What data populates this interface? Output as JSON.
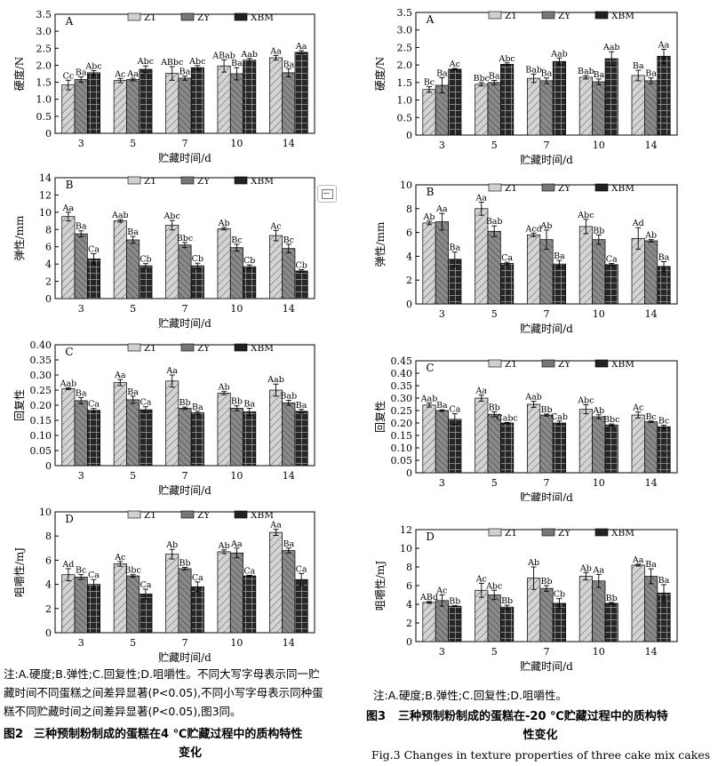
{
  "legend": [
    "Z1",
    "ZY",
    "XBM"
  ],
  "x_title": "贮藏时间/d",
  "chart_data": [
    {
      "id": "L-A",
      "type": "bar",
      "panel": "A",
      "ylabel": "硬度/N",
      "ylim": [
        0,
        3.5
      ],
      "yticks": [
        "0",
        "0.5",
        "1.0",
        "1.5",
        "2.0",
        "2.5",
        "3.0",
        "3.5"
      ],
      "categories": [
        "3",
        "5",
        "7",
        "10",
        "14"
      ],
      "series": [
        {
          "name": "Z1",
          "values": [
            1.42,
            1.55,
            1.76,
            1.98,
            2.22
          ],
          "err": [
            0.14,
            0.06,
            0.2,
            0.18,
            0.07
          ],
          "labels": [
            "Cc",
            "Ac",
            "ABbc",
            "ABab",
            "Aa"
          ]
        },
        {
          "name": "ZY",
          "values": [
            1.58,
            1.58,
            1.62,
            1.75,
            1.78
          ],
          "err": [
            0.08,
            0.04,
            0.06,
            0.18,
            0.12
          ],
          "labels": [
            "Ba",
            "Aa",
            "Ba",
            "Ba",
            "Ba"
          ]
        },
        {
          "name": "XBM",
          "values": [
            1.78,
            1.88,
            1.93,
            2.15,
            2.38
          ],
          "err": [
            0.06,
            0.1,
            0.06,
            0.05,
            0.05
          ],
          "labels": [
            "Abc",
            "Abc",
            "Abc",
            "Aab",
            "Aa"
          ]
        }
      ]
    },
    {
      "id": "L-B",
      "type": "bar",
      "panel": "B",
      "ylabel": "弹性/mm",
      "ylim": [
        0,
        14
      ],
      "yticks": [
        "0",
        "2",
        "4",
        "6",
        "8",
        "10",
        "12",
        "14"
      ],
      "categories": [
        "3",
        "5",
        "7",
        "10",
        "14"
      ],
      "series": [
        {
          "name": "Z1",
          "values": [
            9.5,
            9.0,
            8.5,
            8.1,
            7.3
          ],
          "err": [
            0.5,
            0.15,
            0.55,
            0.15,
            0.6
          ],
          "labels": [
            "Aa",
            "Aab",
            "Abc",
            "Ab",
            "Ac"
          ]
        },
        {
          "name": "ZY",
          "values": [
            7.5,
            6.8,
            6.2,
            5.9,
            5.8
          ],
          "err": [
            0.35,
            0.4,
            0.3,
            0.4,
            0.5
          ],
          "labels": [
            "Ba",
            "Ba",
            "Bbc",
            "Bc",
            "Bc"
          ]
        },
        {
          "name": "XBM",
          "values": [
            4.6,
            3.8,
            3.8,
            3.7,
            3.2
          ],
          "err": [
            0.6,
            0.25,
            0.3,
            0.2,
            0.15
          ],
          "labels": [
            "Ca",
            "Cb",
            "Cb",
            "Cb",
            "Cb"
          ]
        }
      ]
    },
    {
      "id": "L-C",
      "type": "bar",
      "panel": "C",
      "ylabel": "回复性",
      "ylim": [
        0,
        0.4
      ],
      "yticks": [
        "0",
        "0.05",
        "0.10",
        "0.15",
        "0.20",
        "0.25",
        "0.30",
        "0.35",
        "0.40"
      ],
      "categories": [
        "3",
        "5",
        "7",
        "10",
        "14"
      ],
      "series": [
        {
          "name": "Z1",
          "values": [
            0.255,
            0.275,
            0.28,
            0.24,
            0.25
          ],
          "err": [
            0.003,
            0.01,
            0.02,
            0.005,
            0.02
          ],
          "labels": [
            "Aab",
            "Aa",
            "Aa",
            "Ab",
            "Aab"
          ]
        },
        {
          "name": "ZY",
          "values": [
            0.215,
            0.218,
            0.19,
            0.19,
            0.208
          ],
          "err": [
            0.01,
            0.012,
            0.004,
            0.008,
            0.008
          ],
          "labels": [
            "Ba",
            "Ba",
            "Bb",
            "Bb",
            "Bab"
          ]
        },
        {
          "name": "XBM",
          "values": [
            0.183,
            0.185,
            0.175,
            0.178,
            0.18
          ],
          "err": [
            0.006,
            0.01,
            0.005,
            0.012,
            0.006
          ],
          "labels": [
            "Ca",
            "Ca",
            "Ba",
            "Ba",
            "Ba"
          ]
        }
      ]
    },
    {
      "id": "L-D",
      "type": "bar",
      "panel": "D",
      "ylabel": "咀嚼性/mJ",
      "ylim": [
        0,
        10
      ],
      "yticks": [
        "0",
        "2",
        "4",
        "6",
        "8",
        "10"
      ],
      "categories": [
        "3",
        "5",
        "7",
        "10",
        "14"
      ],
      "series": [
        {
          "name": "Z1",
          "values": [
            4.8,
            5.7,
            6.5,
            6.7,
            8.3
          ],
          "err": [
            0.5,
            0.2,
            0.4,
            0.15,
            0.25
          ],
          "labels": [
            "Ad",
            "Ac",
            "Ab",
            "Ab",
            "Aa"
          ]
        },
        {
          "name": "ZY",
          "values": [
            4.6,
            4.7,
            5.3,
            6.6,
            6.8
          ],
          "err": [
            0.2,
            0.1,
            0.1,
            0.4,
            0.2
          ],
          "labels": [
            "Bc",
            "Bbc",
            "Bb",
            "Aa",
            "Ba"
          ]
        },
        {
          "name": "XBM",
          "values": [
            4.0,
            3.2,
            3.8,
            4.7,
            4.4
          ],
          "err": [
            0.4,
            0.4,
            0.4,
            0.05,
            0.5
          ],
          "labels": [
            "Ca",
            "Ca",
            "Ca",
            "Ca",
            "Ca"
          ]
        }
      ]
    },
    {
      "id": "R-A",
      "type": "bar",
      "panel": "A",
      "ylabel": "硬度/N",
      "ylim": [
        0,
        3.5
      ],
      "yticks": [
        "0",
        "0.5",
        "1.0",
        "1.5",
        "2.0",
        "2.5",
        "3.0",
        "3.5"
      ],
      "categories": [
        "3",
        "5",
        "7",
        "10",
        "14"
      ],
      "series": [
        {
          "name": "Z1",
          "values": [
            1.3,
            1.45,
            1.62,
            1.65,
            1.7
          ],
          "err": [
            0.08,
            0.05,
            0.12,
            0.05,
            0.15
          ],
          "labels": [
            "Bc",
            "Bbc",
            "Bab",
            "Bab",
            "Ba"
          ]
        },
        {
          "name": "ZY",
          "values": [
            1.42,
            1.5,
            1.55,
            1.52,
            1.55
          ],
          "err": [
            0.22,
            0.06,
            0.08,
            0.08,
            0.08
          ],
          "labels": [
            "Ba",
            "Ba",
            "Ba",
            "Ba",
            "Ba"
          ]
        },
        {
          "name": "XBM",
          "values": [
            1.88,
            2.02,
            2.1,
            2.18,
            2.25
          ],
          "err": [
            0.02,
            0.04,
            0.1,
            0.2,
            0.2
          ],
          "labels": [
            "Ac",
            "Abc",
            "Aab",
            "Aab",
            "Aa"
          ]
        }
      ]
    },
    {
      "id": "R-B",
      "type": "bar",
      "panel": "B",
      "ylabel": "弹性/mm",
      "ylim": [
        0,
        10
      ],
      "yticks": [
        "0",
        "2",
        "4",
        "6",
        "8",
        "10"
      ],
      "categories": [
        "3",
        "5",
        "7",
        "10",
        "14"
      ],
      "series": [
        {
          "name": "Z1",
          "values": [
            6.8,
            8.0,
            5.8,
            6.5,
            5.5
          ],
          "err": [
            0.15,
            0.55,
            0.15,
            0.6,
            0.9
          ],
          "labels": [
            "Ab",
            "Aa",
            "Acd",
            "Abc",
            "Ad"
          ]
        },
        {
          "name": "ZY",
          "values": [
            6.9,
            6.1,
            5.4,
            5.4,
            5.3
          ],
          "err": [
            0.7,
            0.45,
            0.8,
            0.4,
            0.1
          ],
          "labels": [
            "Aa",
            "Bab",
            "Ab",
            "Bb",
            "Ab"
          ]
        },
        {
          "name": "XBM",
          "values": [
            3.75,
            3.4,
            3.35,
            3.3,
            3.15
          ],
          "err": [
            0.6,
            0.1,
            0.3,
            0.1,
            0.4
          ],
          "labels": [
            "Ba",
            "Ca",
            "Ba",
            "Ca",
            "Ba"
          ]
        }
      ]
    },
    {
      "id": "R-C",
      "type": "bar",
      "panel": "C",
      "ylabel": "回复性",
      "ylim": [
        0,
        0.45
      ],
      "yticks": [
        "0",
        "0.05",
        "0.10",
        "0.15",
        "0.20",
        "0.25",
        "0.30",
        "0.35",
        "0.40",
        "0.45"
      ],
      "categories": [
        "3",
        "5",
        "7",
        "10",
        "14"
      ],
      "series": [
        {
          "name": "Z1",
          "values": [
            0.272,
            0.3,
            0.275,
            0.255,
            0.232
          ],
          "err": [
            0.008,
            0.012,
            0.012,
            0.018,
            0.012
          ],
          "labels": [
            "Aab",
            "Aa",
            "Aab",
            "Abc",
            "Ac"
          ]
        },
        {
          "name": "ZY",
          "values": [
            0.25,
            0.235,
            0.232,
            0.225,
            0.205
          ],
          "err": [
            0.003,
            0.01,
            0.004,
            0.008,
            0.003
          ],
          "labels": [
            "Ba",
            "Bb",
            "Bb",
            "Ab",
            "Bc"
          ]
        },
        {
          "name": "XBM",
          "values": [
            0.215,
            0.2,
            0.2,
            0.192,
            0.185
          ],
          "err": [
            0.022,
            0.002,
            0.008,
            0.004,
            0.006
          ],
          "labels": [
            "Ca",
            "Cabc",
            "Cab",
            "Bbc",
            "Bc"
          ]
        }
      ]
    },
    {
      "id": "R-D",
      "type": "bar",
      "panel": "D",
      "ylabel": "咀嚼性/mJ",
      "ylim": [
        0,
        12
      ],
      "yticks": [
        "0",
        "2",
        "4",
        "6",
        "8",
        "10",
        "12"
      ],
      "categories": [
        "3",
        "5",
        "7",
        "10",
        "14"
      ],
      "series": [
        {
          "name": "Z1",
          "values": [
            4.2,
            5.5,
            6.8,
            7.0,
            8.2
          ],
          "err": [
            0.1,
            0.75,
            1.2,
            0.4,
            0.1
          ],
          "labels": [
            "ABd",
            "Ac",
            "Ab",
            "Ab",
            "Aa"
          ]
        },
        {
          "name": "ZY",
          "values": [
            4.4,
            5.0,
            5.7,
            6.5,
            7.0
          ],
          "err": [
            0.6,
            0.5,
            0.3,
            0.7,
            0.8
          ],
          "labels": [
            "Ac",
            "Abc",
            "Bb",
            "Aa",
            "Ba"
          ]
        },
        {
          "name": "XBM",
          "values": [
            3.8,
            3.7,
            4.1,
            4.1,
            5.2
          ],
          "err": [
            0.05,
            0.2,
            0.5,
            0.1,
            0.9
          ],
          "labels": [
            "Bb",
            "Bb",
            "Cb",
            "Bb",
            "Ba"
          ]
        }
      ]
    }
  ],
  "caption_left": {
    "note_lines": [
      "注:A.硬度;B.弹性;C.回复性;D.咀嚼性。不同大写字母表示同一贮",
      "藏时间不同蛋糕之间差异显著(P<0.05),不同小写字母表示同种蛋",
      "糕不同贮藏时间之间差异显著(P<0.05),图3同。"
    ],
    "fig_no": "图2",
    "title_line1": "三种预制粉制成的蛋糕在4 ℃贮藏过程中的质构特性",
    "title_line2": "变化"
  },
  "caption_right": {
    "note": "注:A.硬度;B.弹性;C.回复性;D.咀嚼性。",
    "fig_no": "图3",
    "title_line1": "三种预制粉制成的蛋糕在-20 ℃贮藏过程中的质构特",
    "title_line2": "性变化",
    "english": "Fig.3    Changes in texture properties of three cake mix cakes"
  }
}
